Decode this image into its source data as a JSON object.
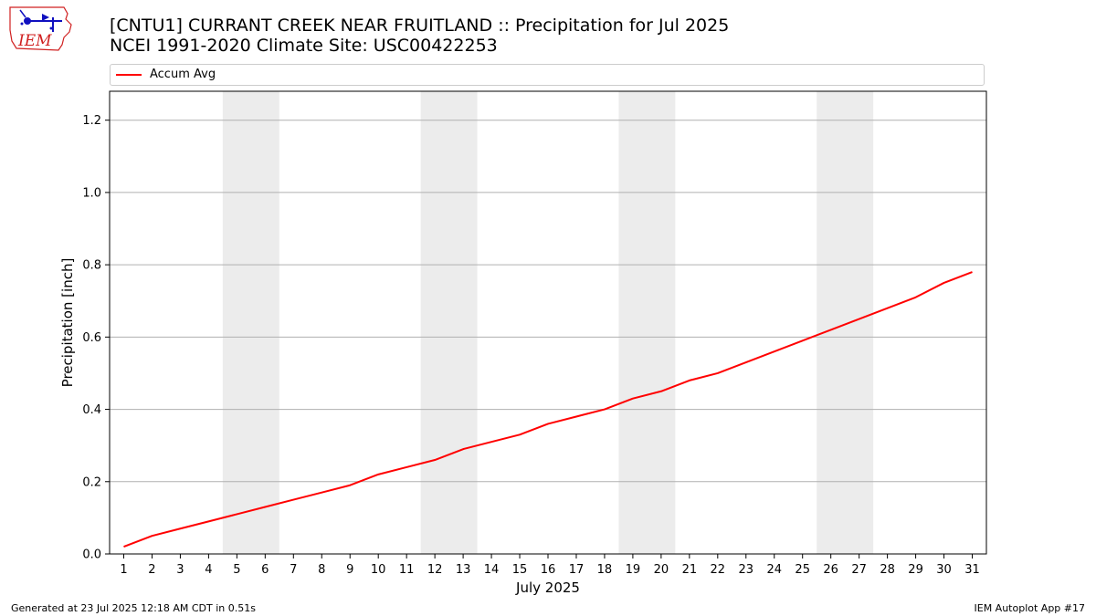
{
  "header": {
    "title_line1": "[CNTU1] CURRANT CREEK NEAR FRUITLAND :: Precipitation for Jul 2025",
    "title_line2": "NCEI 1991-2020 Climate Site: USC00422253",
    "logo_text": "IEM"
  },
  "footer": {
    "generated": "Generated at 23 Jul 2025 12:18 AM CDT in 0.51s",
    "app": "IEM Autoplot App #17"
  },
  "chart_data": {
    "type": "line",
    "xlabel": "July 2025",
    "ylabel": "Precipitation [inch]",
    "x": [
      1,
      2,
      3,
      4,
      5,
      6,
      7,
      8,
      9,
      10,
      11,
      12,
      13,
      14,
      15,
      16,
      17,
      18,
      19,
      20,
      21,
      22,
      23,
      24,
      25,
      26,
      27,
      28,
      29,
      30,
      31
    ],
    "xlim": [
      0.5,
      31.5
    ],
    "ylim": [
      0,
      1.28
    ],
    "yticks": [
      0.0,
      0.2,
      0.4,
      0.6,
      0.8,
      1.0,
      1.2
    ],
    "ytick_labels": [
      "0.0",
      "0.2",
      "0.4",
      "0.6",
      "0.8",
      "1.0",
      "1.2"
    ],
    "grid": "horizontal",
    "legend_position": "top",
    "weekend_bands": [
      [
        5,
        6
      ],
      [
        12,
        13
      ],
      [
        19,
        20
      ],
      [
        26,
        27
      ]
    ],
    "weekend_color": "#ececec",
    "series": [
      {
        "name": "Accum Avg",
        "color": "#ff0000",
        "values": [
          0.02,
          0.05,
          0.07,
          0.09,
          0.11,
          0.13,
          0.15,
          0.17,
          0.19,
          0.22,
          0.24,
          0.26,
          0.29,
          0.31,
          0.33,
          0.36,
          0.38,
          0.4,
          0.43,
          0.45,
          0.48,
          0.5,
          0.53,
          0.56,
          0.59,
          0.62,
          0.65,
          0.68,
          0.71,
          0.75,
          0.78
        ]
      }
    ]
  }
}
